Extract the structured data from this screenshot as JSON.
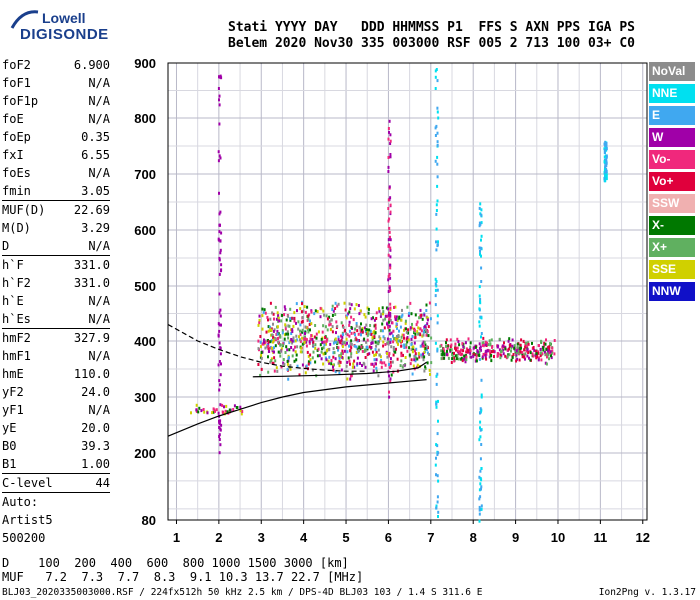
{
  "logo": {
    "line1": "Lowell",
    "line2": "DIGISONDE"
  },
  "header": {
    "row1": "Stati YYYY DAY   DDD HHMMSS P1  FFS S AXN PPS IGA PS",
    "row2": "Belem 2020 Nov30 335 003000 RSF 005 2 713 100 03+ C0"
  },
  "params": [
    {
      "k": "foF2",
      "v": "6.900"
    },
    {
      "k": "foF1",
      "v": "N/A"
    },
    {
      "k": "foF1p",
      "v": "N/A"
    },
    {
      "k": "foE",
      "v": "N/A"
    },
    {
      "k": "foEp",
      "v": "0.35"
    },
    {
      "k": "fxI",
      "v": "6.55"
    },
    {
      "k": "foEs",
      "v": "N/A"
    },
    {
      "k": "fmin",
      "v": "3.05"
    },
    {
      "k": "MUF(D)",
      "v": "22.69",
      "sep": true
    },
    {
      "k": "M(D)",
      "v": "3.29"
    },
    {
      "k": "D",
      "v": "N/A"
    },
    {
      "k": "h`F",
      "v": "331.0",
      "sep": true
    },
    {
      "k": "h`F2",
      "v": "331.0"
    },
    {
      "k": "h`E",
      "v": "N/A"
    },
    {
      "k": "h`Es",
      "v": "N/A"
    },
    {
      "k": "hmF2",
      "v": "327.9",
      "sep": true
    },
    {
      "k": "hmF1",
      "v": "N/A"
    },
    {
      "k": "hmE",
      "v": "110.0"
    },
    {
      "k": "yF2",
      "v": "24.0"
    },
    {
      "k": "yF1",
      "v": "N/A"
    },
    {
      "k": "yE",
      "v": "20.0"
    },
    {
      "k": "B0",
      "v": "39.3"
    },
    {
      "k": "B1",
      "v": "1.00"
    },
    {
      "k": "C-level",
      "v": "44",
      "sep": true
    },
    {
      "k": "Auto:",
      "v": "",
      "sep": true
    },
    {
      "k": "Artist5",
      "v": ""
    },
    {
      "k": "500200",
      "v": ""
    }
  ],
  "legend": [
    {
      "label": "NoVal",
      "color": "#8c8c8c"
    },
    {
      "label": "NNE",
      "color": "#00e0f0"
    },
    {
      "label": "E",
      "color": "#40a8f0"
    },
    {
      "label": "W",
      "color": "#a000a8"
    },
    {
      "label": "Vo-",
      "color": "#f0287c"
    },
    {
      "label": "Vo+",
      "color": "#e0003c"
    },
    {
      "label": "SSW",
      "color": "#f0b0b0"
    },
    {
      "label": "X-",
      "color": "#007800"
    },
    {
      "label": "X+",
      "color": "#60b060"
    },
    {
      "label": "SSE",
      "color": "#d0d000"
    },
    {
      "label": "NNW",
      "color": "#1010c8"
    }
  ],
  "footer": {
    "d_row": "D    100  200  400  600  800 1000 1500 3000 [km]",
    "muf_row": "MUF   7.2  7.3  7.7  8.3  9.1 10.3 13.7 22.7 [MHz]",
    "file": "BLJ03_2020335003000.RSF / 224fx512h 50 kHz 2.5 km / DPS-4D BLJ03 103 / 1.4 S 311.6 E",
    "version": "Ion2Png v. 1.3.17"
  },
  "chart_data": {
    "type": "scatter",
    "title": "",
    "xlabel": "",
    "ylabel": "",
    "xlim": [
      0.8,
      12.1
    ],
    "ylim": [
      80,
      900
    ],
    "x_ticks": [
      1,
      2,
      3,
      4,
      5,
      6,
      7,
      8,
      9,
      10,
      11,
      12
    ],
    "y_ticks": [
      80,
      200,
      300,
      400,
      500,
      600,
      700,
      800,
      900
    ],
    "grid": true,
    "legend_position": "right",
    "lines": [
      {
        "style": "solid",
        "points": [
          [
            0.8,
            230
          ],
          [
            1.5,
            252
          ],
          [
            2.0,
            266
          ],
          [
            2.5,
            278
          ],
          [
            3.0,
            290
          ],
          [
            3.5,
            300
          ],
          [
            4.0,
            308
          ],
          [
            5.0,
            318
          ],
          [
            6.0,
            325
          ],
          [
            6.9,
            331
          ]
        ]
      },
      {
        "style": "solid",
        "points": [
          [
            2.8,
            336
          ],
          [
            3.5,
            337
          ],
          [
            4.5,
            339
          ],
          [
            5.5,
            342
          ],
          [
            6.2,
            346
          ],
          [
            6.7,
            352
          ],
          [
            6.9,
            362
          ]
        ]
      },
      {
        "style": "dashed",
        "points": [
          [
            0.8,
            430
          ],
          [
            1.5,
            400
          ],
          [
            2.0,
            385
          ],
          [
            2.5,
            372
          ],
          [
            3.0,
            362
          ],
          [
            3.5,
            355
          ],
          [
            4.0,
            351
          ],
          [
            4.5,
            348
          ],
          [
            5.0,
            346
          ],
          [
            5.5,
            346
          ]
        ]
      }
    ],
    "clusters": [
      {
        "group": "F-trace main",
        "x": [
          2.9,
          7.0
        ],
        "y": [
          330,
          480
        ],
        "colors": [
          "#f0287c",
          "#e0003c",
          "#a000a8",
          "#007800",
          "#60b060",
          "#40a8f0",
          "#d0d000",
          "#8c8c8c"
        ]
      },
      {
        "group": "F-trace high",
        "x": [
          7.2,
          9.9
        ],
        "y": [
          360,
          410
        ],
        "colors": [
          "#f0287c",
          "#e0003c",
          "#007800",
          "#60b060",
          "#a000a8"
        ]
      },
      {
        "group": "E-vertical",
        "x": [
          7.12,
          7.12
        ],
        "y": [
          80,
          900
        ],
        "colors": [
          "#40a8f0",
          "#00e0f0"
        ]
      },
      {
        "group": "E-vertical 2",
        "x": [
          8.15,
          8.15
        ],
        "y": [
          80,
          650
        ],
        "colors": [
          "#40a8f0",
          "#00e0f0"
        ]
      },
      {
        "group": "W-vertical",
        "x": [
          2.0,
          2.0
        ],
        "y": [
          200,
          890
        ],
        "colors": [
          "#a000a8"
        ]
      },
      {
        "group": "W-vertical 2",
        "x": [
          6.0,
          6.0
        ],
        "y": [
          300,
          800
        ],
        "colors": [
          "#a000a8",
          "#f0287c"
        ]
      },
      {
        "group": "E right",
        "x": [
          11.1,
          11.1
        ],
        "y": [
          690,
          760
        ],
        "colors": [
          "#40a8f0",
          "#00e0f0"
        ]
      },
      {
        "group": "low spread",
        "x": [
          1.3,
          2.6
        ],
        "y": [
          270,
          290
        ],
        "colors": [
          "#a000a8",
          "#007800",
          "#d0d000",
          "#f0287c"
        ]
      }
    ]
  }
}
